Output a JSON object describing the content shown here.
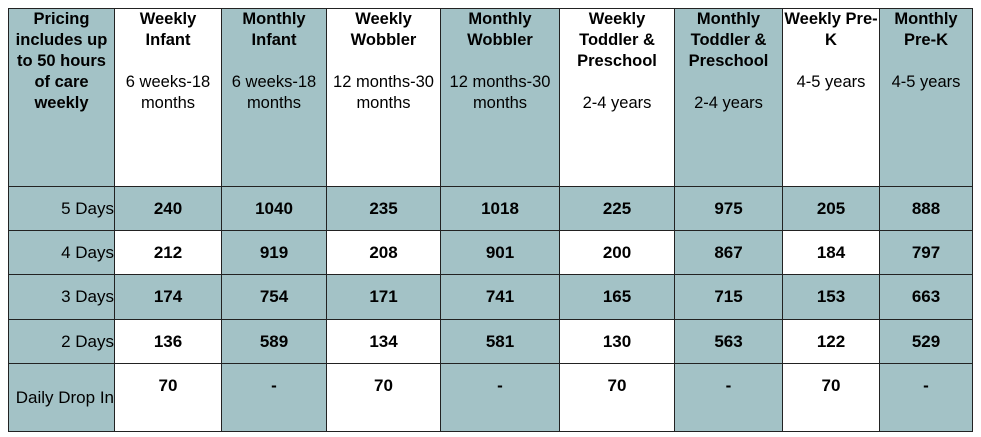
{
  "corner_label": "Pricing includes up to 50 hours of care weekly",
  "columns": [
    {
      "title": "Weekly Infant",
      "age": "6 weeks-18 months"
    },
    {
      "title": "Monthly Infant",
      "age": "6 weeks-18 months"
    },
    {
      "title": "Weekly Wobbler",
      "age": "12 months-30 months"
    },
    {
      "title": "Monthly Wobbler",
      "age": "12 months-30 months"
    },
    {
      "title": "Weekly Toddler & Preschool",
      "age": "2-4 years"
    },
    {
      "title": "Monthly Toddler & Preschool",
      "age": "2-4 years"
    },
    {
      "title": "Weekly Pre-K",
      "age": "4-5 years"
    },
    {
      "title": "Monthly Pre-K",
      "age": "4-5 years"
    }
  ],
  "rows": [
    {
      "label": "5 Days",
      "values": [
        "240",
        "1040",
        "235",
        "1018",
        "225",
        "975",
        "205",
        "888"
      ]
    },
    {
      "label": "4 Days",
      "values": [
        "212",
        "919",
        "208",
        "901",
        "200",
        "867",
        "184",
        "797"
      ]
    },
    {
      "label": "3 Days",
      "values": [
        "174",
        "754",
        "171",
        "741",
        "165",
        "715",
        "153",
        "663"
      ]
    },
    {
      "label": "2 Days",
      "values": [
        "136",
        "589",
        "134",
        "581",
        "130",
        "563",
        "122",
        "529"
      ]
    },
    {
      "label": "Daily Drop In",
      "values": [
        "70",
        "-",
        "70",
        "-",
        "70",
        "-",
        "70",
        "-"
      ]
    }
  ],
  "colors": {
    "teal": "#a3c2c6",
    "white": "#ffffff",
    "border": "#222222"
  }
}
